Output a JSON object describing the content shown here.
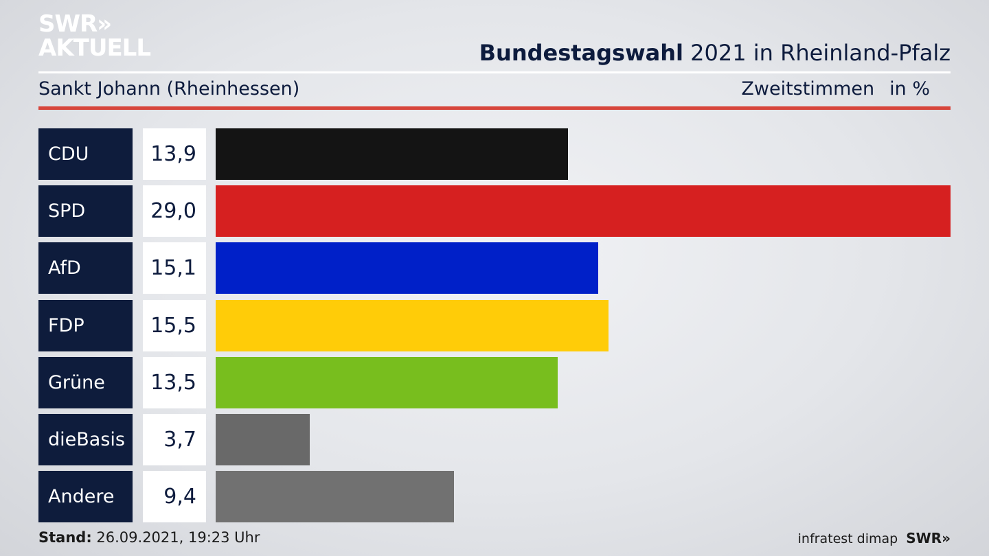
{
  "logo": {
    "line1": "SWR",
    "arrows": "»",
    "line2": "AKTUELL"
  },
  "header": {
    "title_bold": "Bundestagswahl",
    "title_rest": " 2021 in Rheinland-Pfalz",
    "region": "Sankt Johann (Rheinhessen)",
    "metric": "Zweitstimmen",
    "unit": "in %"
  },
  "footer": {
    "stand_label": "Stand:",
    "stand_value": " 26.09.2021, 19:23 Uhr",
    "source": "infratest dimap",
    "brand": "SWR»"
  },
  "colors": {
    "CDU": "#141414",
    "SPD": "#d62020",
    "AfD": "#0020c8",
    "FDP": "#ffcc08",
    "Grüne": "#78be1e",
    "dieBasis": "#696969",
    "Andere": "#717171"
  },
  "chart_data": {
    "type": "bar",
    "orientation": "horizontal",
    "title": "Bundestagswahl 2021 in Rheinland-Pfalz",
    "subtitle": "Sankt Johann (Rheinhessen)",
    "ylabel": "Zweitstimmen",
    "unit": "in %",
    "categories": [
      "CDU",
      "SPD",
      "AfD",
      "FDP",
      "Grüne",
      "dieBasis",
      "Andere"
    ],
    "values": [
      13.9,
      29.0,
      15.1,
      15.5,
      13.5,
      3.7,
      9.4
    ],
    "value_labels": [
      "13,9",
      "29,0",
      "15,1",
      "15,5",
      "13,5",
      "3,7",
      "9,4"
    ],
    "xlim": [
      0,
      29.0
    ],
    "grid": false,
    "legend": "none"
  }
}
